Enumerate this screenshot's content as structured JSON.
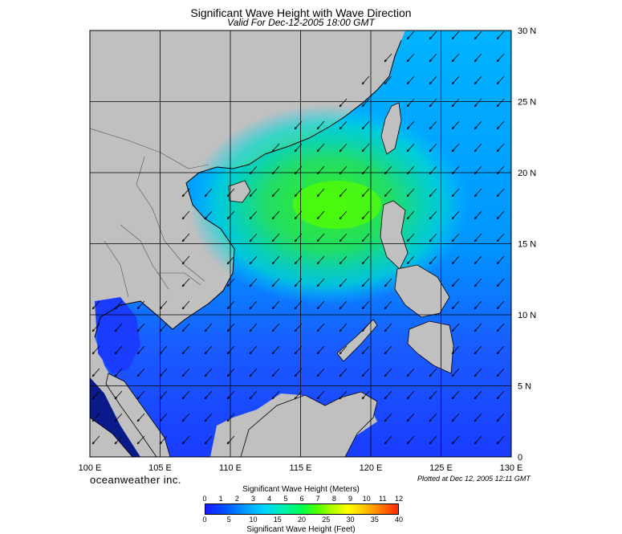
{
  "header": {
    "title": "Significant Wave Height with Wave Direction",
    "subtitle": "Valid For Dec-12-2005 18:00 GMT"
  },
  "map": {
    "lon_range": [
      100,
      130
    ],
    "lat_range": [
      0,
      30
    ],
    "lon_labels": [
      "100 E",
      "105 E",
      "110 E",
      "115 E",
      "120 E",
      "125 E",
      "130 E"
    ],
    "lat_labels": [
      "30 N",
      "25 N",
      "20 N",
      "15 N",
      "10 N",
      "5 N",
      "0"
    ],
    "land_color": "#c0c0c0",
    "grid": true,
    "wave_direction": "from north-east (arrows pointing south-west)"
  },
  "legend": {
    "meters_title": "Significant Wave Height (Meters)",
    "meters_ticks": [
      "0",
      "1",
      "2",
      "3",
      "4",
      "5",
      "6",
      "7",
      "8",
      "9",
      "10",
      "11",
      "12"
    ],
    "feet_title": "Significant Wave Height (Feet)",
    "feet_ticks": [
      "0",
      "5",
      "10",
      "15",
      "20",
      "25",
      "30",
      "35",
      "40"
    ]
  },
  "footer": {
    "brand": "oceanweather inc.",
    "plotted": "Plotted at Dec 12, 2005 12:11 GMT"
  }
}
